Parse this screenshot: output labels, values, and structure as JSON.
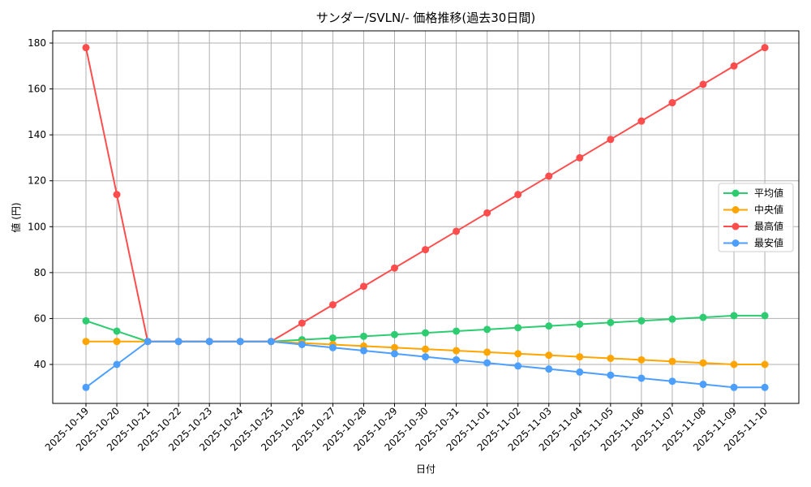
{
  "chart_data": {
    "type": "line",
    "title": "サンダー/SVLN/- 価格推移(過去30日間)",
    "xlabel": "日付",
    "ylabel": "値 (円)",
    "ylim": [
      22,
      185
    ],
    "yticks": [
      40,
      60,
      80,
      100,
      120,
      140,
      160,
      180
    ],
    "grid": true,
    "legend_position": "center right",
    "x": [
      "2025-10-19",
      "2025-10-20",
      "2025-10-21",
      "2025-10-22",
      "2025-10-23",
      "2025-10-24",
      "2025-10-25",
      "2025-10-26",
      "2025-10-27",
      "2025-10-28",
      "2025-10-29",
      "2025-10-30",
      "2025-10-31",
      "2025-11-01",
      "2025-11-02",
      "2025-11-03",
      "2025-11-04",
      "2025-11-05",
      "2025-11-06",
      "2025-11-07",
      "2025-11-08",
      "2025-11-09",
      "2025-11-10"
    ],
    "series": [
      {
        "name": "平均値",
        "color": "#2ecc71",
        "values": [
          59,
          54.5,
          50,
          50,
          50,
          50,
          50,
          50.75,
          51.5,
          52.25,
          53,
          53.75,
          54.5,
          55.25,
          56,
          56.75,
          57.5,
          58.25,
          59,
          59.75,
          60.5,
          61.25,
          61.25
        ]
      },
      {
        "name": "中央値",
        "color": "#ffa500",
        "values": [
          50,
          50,
          50,
          50,
          50,
          50,
          50,
          49.33,
          48.67,
          48,
          47.33,
          46.67,
          46,
          45.33,
          44.67,
          44,
          43.33,
          42.67,
          42,
          41.33,
          40.67,
          40,
          40
        ]
      },
      {
        "name": "最高値",
        "color": "#ff4d4d",
        "values": [
          178,
          114,
          50,
          50,
          50,
          50,
          50,
          58,
          66,
          74,
          82,
          90,
          98,
          106,
          114,
          122,
          130,
          138,
          146,
          154,
          162,
          170,
          178
        ]
      },
      {
        "name": "最安値",
        "color": "#4d9fff",
        "values": [
          30,
          40,
          50,
          50,
          50,
          50,
          50,
          48.67,
          47.33,
          46,
          44.67,
          43.33,
          42,
          40.67,
          39.33,
          38,
          36.67,
          35.33,
          34,
          32.67,
          31.33,
          30,
          30
        ]
      }
    ]
  }
}
